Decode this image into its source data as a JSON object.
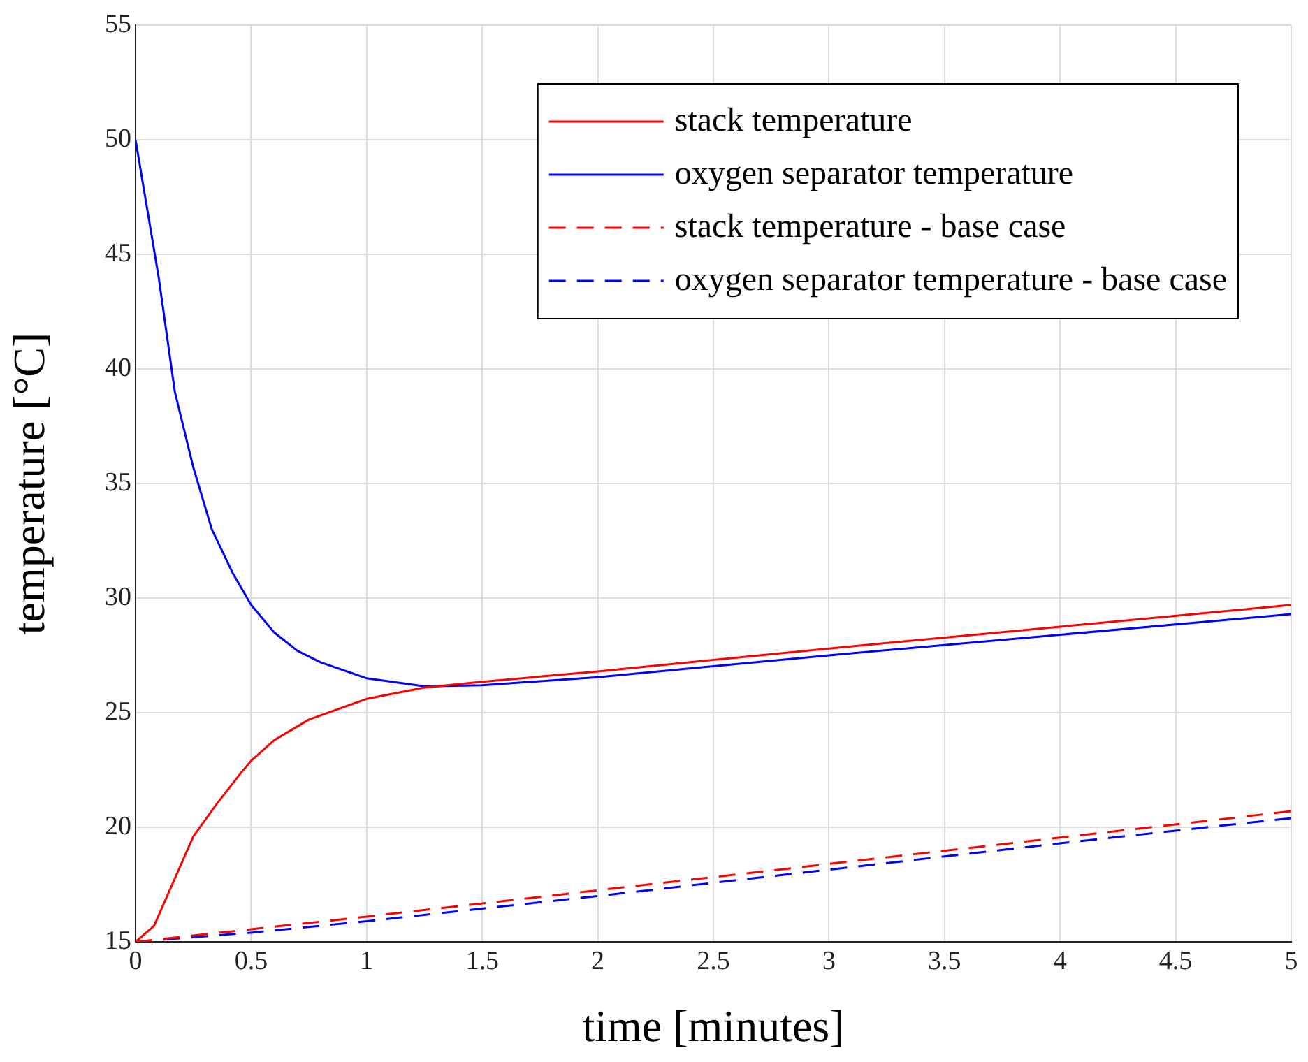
{
  "chart_data": {
    "type": "line",
    "xlabel": "time [minutes]",
    "ylabel": "temperature [°C]",
    "xlim": [
      0,
      5
    ],
    "xticks": [
      0,
      0.5,
      1,
      1.5,
      2,
      2.5,
      3,
      3.5,
      4,
      4.5,
      5
    ],
    "ylim": [
      15,
      55
    ],
    "yticks": [
      15,
      20,
      25,
      30,
      35,
      40,
      45,
      50,
      55
    ],
    "grid": true,
    "legend": "top right",
    "marker": "none",
    "series": [
      {
        "name": "stack temperature",
        "color": "#ff0000",
        "x": [
          0,
          0.08,
          0.25,
          0.35,
          0.45,
          0.5,
          0.6,
          0.75,
          1,
          1.25,
          1.5,
          2,
          3,
          4,
          5
        ],
        "values": [
          15,
          15.7,
          19.6,
          21,
          22.3,
          22.9,
          23.8,
          24.7,
          25.6,
          26.1,
          26.35,
          26.8,
          27.8,
          28.75,
          29.7
        ]
      },
      {
        "name": "oxygen separator temperature",
        "color": "#0000ff",
        "x": [
          0,
          0.1,
          0.17,
          0.25,
          0.33,
          0.42,
          0.5,
          0.6,
          0.7,
          0.8,
          1,
          1.25,
          1.5,
          2,
          3,
          4,
          5
        ],
        "values": [
          50,
          44,
          39,
          35.7,
          33,
          31.1,
          29.7,
          28.5,
          27.7,
          27.2,
          26.5,
          26.15,
          26.2,
          26.55,
          27.5,
          28.4,
          29.3
        ]
      },
      {
        "name": "stack temperature - base case",
        "color": "#ff0000",
        "line_style": "dashed",
        "x": [
          0,
          1,
          2,
          3,
          4,
          5
        ],
        "values": [
          15,
          16.1,
          17.25,
          18.4,
          19.55,
          20.7
        ]
      },
      {
        "name": "oxygen separator temperature - base case",
        "color": "#0000ff",
        "line_style": "dashed",
        "x": [
          0,
          0.5,
          1,
          2,
          3,
          4,
          5
        ],
        "values": [
          15,
          15.4,
          15.9,
          17,
          18.15,
          19.3,
          20.4
        ]
      }
    ]
  }
}
